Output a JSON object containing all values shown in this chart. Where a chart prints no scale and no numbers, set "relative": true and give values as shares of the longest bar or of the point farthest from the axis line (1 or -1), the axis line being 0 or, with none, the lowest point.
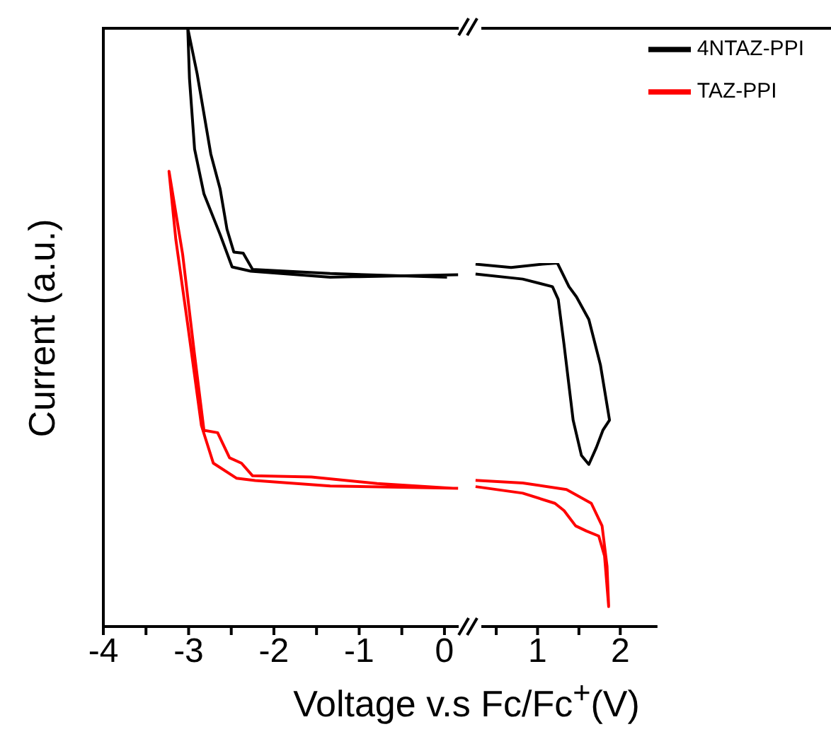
{
  "chart_data": [
    {
      "type": "line",
      "relative": true,
      "ylabel": "Current (a.u.)",
      "xlabel": "Voltage v.s Fc/Fc$^{+}$(V)",
      "xlim": [
        -4,
        0.2
      ],
      "xticks": [
        -4,
        {
          "value": -3.5,
          "label": null
        },
        -3,
        {
          "value": -2.5,
          "label": null
        },
        -2,
        {
          "value": -1.5,
          "label": null
        },
        -1,
        {
          "value": -0.5,
          "label": null
        },
        0
      ],
      "line_style": "solid",
      "marker": "none",
      "legend": false,
      "grid": false,
      "series": [
        {
          "color": "#000000",
          "x": [
            0.16,
            -1.34,
            -2.27,
            -2.49,
            -2.63,
            -2.82,
            -2.93,
            -2.99,
            -3.01,
            -2.9,
            -2.74,
            -2.63,
            -2.55,
            -2.47,
            -2.36,
            -2.25,
            -1.34,
            0.03
          ],
          "values": [
            0.588,
            0.584,
            0.594,
            0.601,
            0.655,
            0.723,
            0.798,
            0.916,
            1,
            0.924,
            0.79,
            0.731,
            0.664,
            0.626,
            0.624,
            0.597,
            0.59,
            0.584
          ]
        },
        {
          "color": "#ff0000",
          "x": [
            0.16,
            -1.34,
            -2.22,
            -2.44,
            -2.71,
            -2.85,
            -3.01,
            -3.15,
            -3.23,
            -3.07,
            -2.93,
            -2.82,
            -2.66,
            -2.52,
            -2.38,
            -2.25,
            -1.56,
            -0.79,
            0.1
          ],
          "values": [
            0.231,
            0.235,
            0.244,
            0.248,
            0.273,
            0.336,
            0.504,
            0.647,
            0.761,
            0.622,
            0.454,
            0.328,
            0.324,
            0.282,
            0.273,
            0.252,
            0.25,
            0.239,
            0.231
          ]
        }
      ]
    },
    {
      "type": "line",
      "relative": true,
      "xlim": [
        0.2,
        2.45
      ],
      "xticks": [
        {
          "value": 0.5,
          "label": null
        },
        1,
        {
          "value": 1.5,
          "label": null
        },
        2
      ],
      "line_style": "solid",
      "marker": "none",
      "legend": "top right",
      "grid": false,
      "series": [
        {
          "name": "4NTAZ-PPI",
          "color": "#000000",
          "x": [
            0.25,
            0.68,
            1.06,
            1.24,
            1.38,
            1.47,
            1.62,
            1.76,
            1.87,
            1.79,
            1.71,
            1.62,
            1.53,
            1.43,
            1.32,
            1.25,
            1.18,
            0.82,
            0.25
          ],
          "values": [
            0.997,
            0.988,
            0.997,
            1,
            0.935,
            0.907,
            0.845,
            0.72,
            0.568,
            0.54,
            0.492,
            0.446,
            0.471,
            0.568,
            0.776,
            0.9,
            0.935,
            0.956,
            0.97
          ]
        },
        {
          "name": "TAZ-PPI",
          "color": "#ff0000",
          "x": [
            0.25,
            0.82,
            1.35,
            1.65,
            1.78,
            1.84,
            1.86,
            1.81,
            1.74,
            1.59,
            1.46,
            1.32,
            1.21,
            0.82,
            0.25
          ],
          "values": [
            0.402,
            0.395,
            0.377,
            0.339,
            0.277,
            0.166,
            0.055,
            0.194,
            0.249,
            0.263,
            0.277,
            0.319,
            0.339,
            0.367,
            0.385
          ]
        }
      ]
    }
  ]
}
